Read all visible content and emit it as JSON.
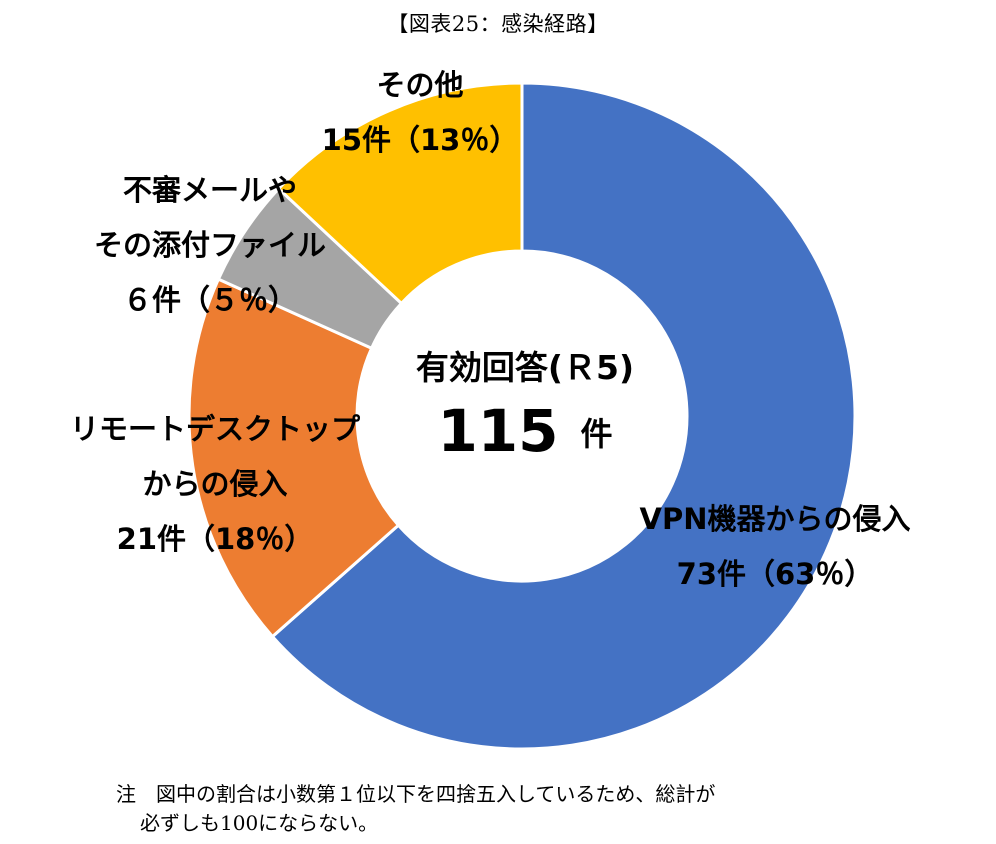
{
  "chart_data": {
    "type": "pie",
    "title": "【図表25：感染経路】",
    "center": {
      "label": "有効回答(Ｒ5)",
      "total": "115",
      "unit": "件"
    },
    "slices": [
      {
        "name": "VPN機器からの侵入",
        "count": 73,
        "percent": 63,
        "label_lines": [
          "VPN機器からの侵入",
          "73件（63％）"
        ],
        "color": "#4472C4"
      },
      {
        "name": "リモートデスクトップからの侵入",
        "count": 21,
        "percent": 18,
        "label_lines": [
          "リモートデスクトップ",
          "からの侵入",
          "21件（18％）"
        ],
        "color": "#ED7D31"
      },
      {
        "name": "不審メールやその添付ファイル",
        "count": 6,
        "percent": 5,
        "label_lines": [
          "不審メールや",
          "その添付ファイル",
          "６件（５％）"
        ],
        "color": "#A5A5A5"
      },
      {
        "name": "その他",
        "count": 15,
        "percent": 13,
        "label_lines": [
          "その他",
          "15件（13％）"
        ],
        "color": "#FFC000"
      }
    ],
    "legend": "none"
  },
  "note": {
    "line1": "注　図中の割合は小数第１位以下を四捨五入しているため、総計が",
    "line2": "必ずしも100にならない。"
  }
}
